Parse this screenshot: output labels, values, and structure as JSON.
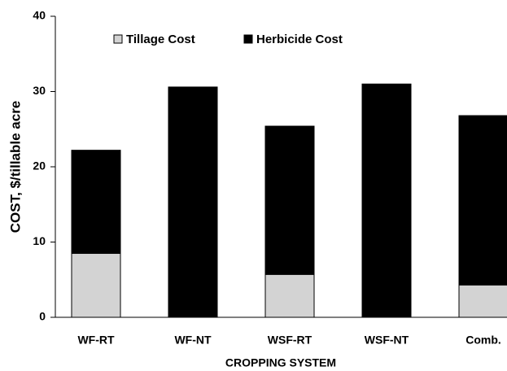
{
  "chart_data": {
    "type": "stacked_bar",
    "x_label": "CROPPING SYSTEM",
    "y_label": "COST, $/tillable acre",
    "categories": [
      "WF-RT",
      "WF-NT",
      "WSF-RT",
      "WSF-NT",
      "Comb."
    ],
    "series": [
      {
        "name": "Tillage Cost",
        "color": "#d3d3d3",
        "values": [
          8.5,
          0,
          5.7,
          0,
          4.3
        ]
      },
      {
        "name": "Herbicide Cost",
        "color": "#000000",
        "values": [
          13.7,
          30.6,
          19.7,
          31.0,
          22.5
        ]
      }
    ],
    "ylim": [
      0,
      40
    ],
    "yticks": [
      0,
      10,
      20,
      30,
      40
    ],
    "grid": false
  }
}
